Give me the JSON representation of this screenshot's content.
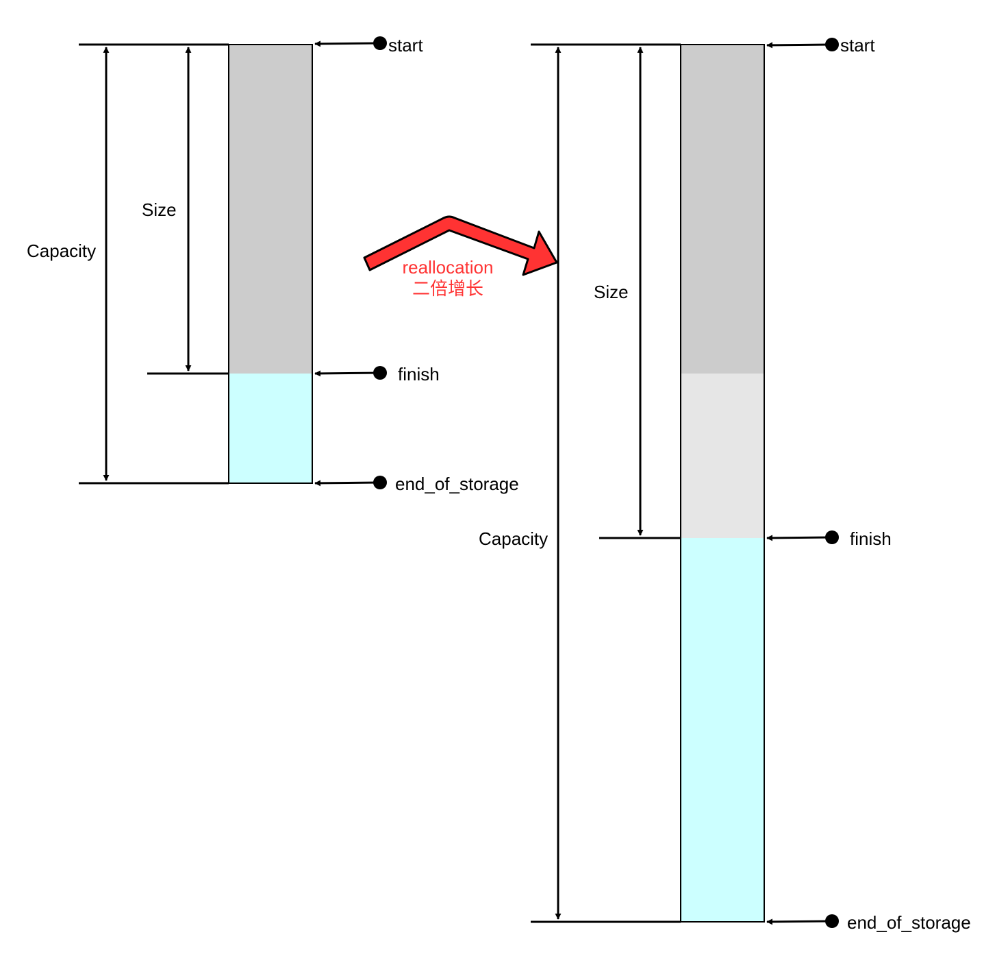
{
  "colors": {
    "used": "#cccccc",
    "copied": "#e6e6e6",
    "free": "#ccffff",
    "accent": "#ff3333",
    "line": "#000000"
  },
  "before": {
    "capacity_label": "Capacity",
    "size_label": "Size",
    "pointers": {
      "start": "start",
      "finish": "finish",
      "end_of_storage": "end_of_storage"
    }
  },
  "transition": {
    "label_line1": "reallocation",
    "label_line2": "二倍增长"
  },
  "after": {
    "capacity_label": "Capacity",
    "size_label": "Size",
    "pointers": {
      "start": "start",
      "finish": "finish",
      "end_of_storage": "end_of_storage"
    }
  }
}
